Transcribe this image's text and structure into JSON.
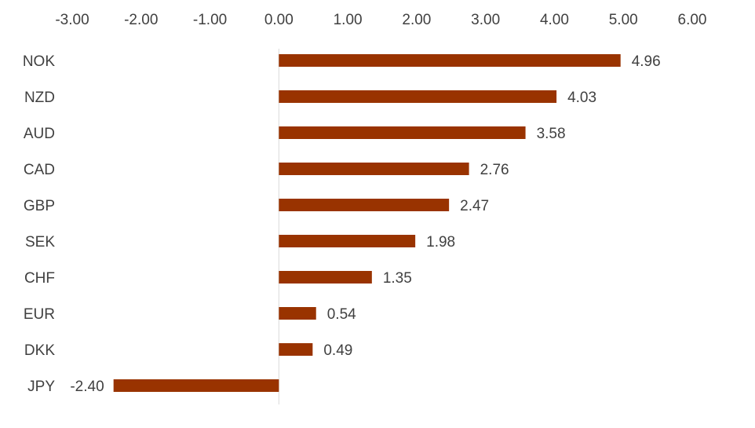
{
  "chart_data": {
    "type": "bar",
    "orientation": "horizontal",
    "title": "",
    "xlabel": "",
    "ylabel": "",
    "categories": [
      "NOK",
      "NZD",
      "AUD",
      "CAD",
      "GBP",
      "SEK",
      "CHF",
      "EUR",
      "DKK",
      "JPY"
    ],
    "values": [
      4.96,
      4.03,
      3.58,
      2.76,
      2.47,
      1.98,
      1.35,
      0.54,
      0.49,
      -2.4
    ],
    "value_labels": [
      "4.96",
      "4.03",
      "3.58",
      "2.76",
      "2.47",
      "1.98",
      "1.35",
      "0.54",
      "0.49",
      "-2.40"
    ],
    "xlim": [
      -3,
      6
    ],
    "x_ticks": [
      -3,
      -2,
      -1,
      0,
      1,
      2,
      3,
      4,
      5,
      6
    ],
    "x_tick_labels": [
      "-3.00",
      "-2.00",
      "-1.00",
      "0.00",
      "1.00",
      "2.00",
      "3.00",
      "4.00",
      "5.00",
      "6.00"
    ],
    "x_axis_position": "top",
    "grid": false,
    "legend": false,
    "bar_color": "#993300",
    "text_color": "#404040",
    "axis_line_color": "#d9d9d9"
  }
}
